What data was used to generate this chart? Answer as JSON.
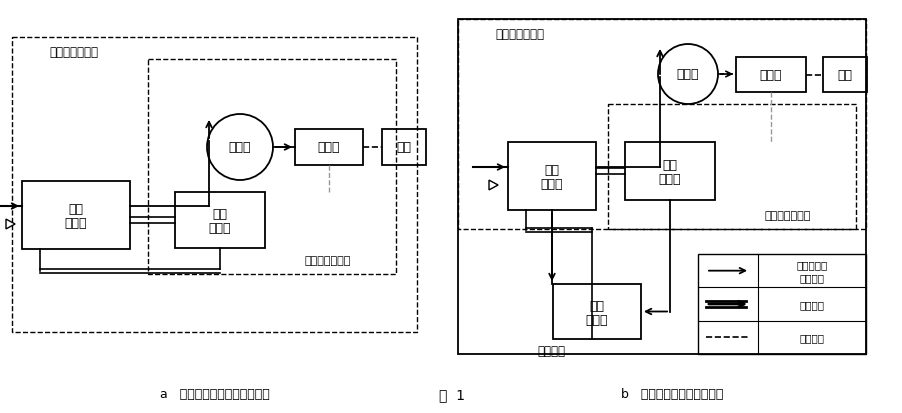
{
  "fig_width": 9.03,
  "fig_height": 4.14,
  "bg_color": "#ffffff",
  "line_color": "#000000",
  "caption_a": "a   没接入电动操作器控制原理",
  "caption_b": "b   接入电动操作器控制原理",
  "fig_label": "图  1"
}
